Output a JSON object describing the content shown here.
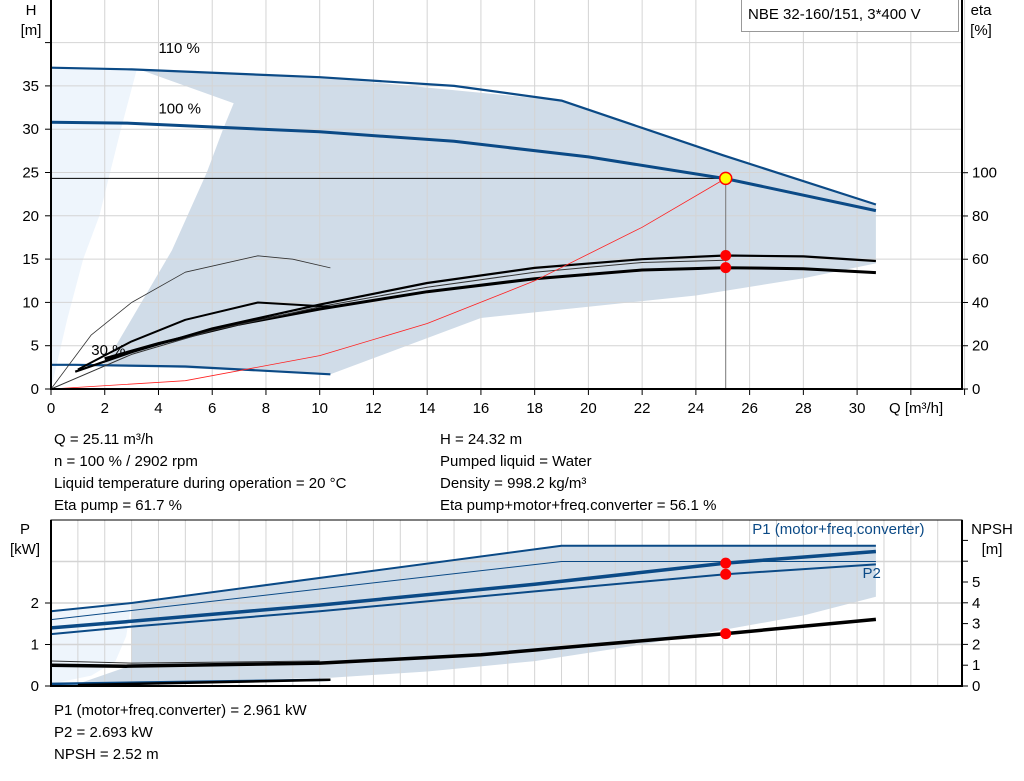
{
  "pump_title": "NBE 32-160/151, 3*400 V",
  "operating_point_info": {
    "left": [
      "Q = 25.11 m³/h",
      "n = 100 % / 2902 rpm",
      "Liquid temperature during operation = 20 °C",
      "Eta pump = 61.7 %"
    ],
    "right": [
      "H = 24.32 m",
      "Pumped liquid = Water",
      "Density = 998.2 kg/m³",
      "Eta pump+motor+freq.converter = 56.1 %"
    ]
  },
  "power_info": [
    "P1 (motor+freq.converter) = 2.961 kW",
    "P2 = 2.693 kW",
    "NPSH = 2.52 m"
  ],
  "colors": {
    "curve_blue": "#0b4a86",
    "envelope": "#d0dce8",
    "envelope_light": "#eef5fc",
    "grid": "#d4d4d4",
    "system_curve": "#ff2020",
    "marker": "#ff0000",
    "duty_point": "#ffff00"
  },
  "chart_data": [
    {
      "type": "line",
      "xlabel": "Q [m³/h]",
      "ylabel_left": [
        "H",
        "[m]"
      ],
      "ylabel_right": [
        "eta",
        "[%]"
      ],
      "xlim": [
        0,
        33.9
      ],
      "ylim_left": [
        0,
        40
      ],
      "ylim_right": [
        0,
        180
      ],
      "x_ticks": [
        "0",
        "2",
        "4",
        "6",
        "8",
        "10",
        "12",
        "14",
        "16",
        "18",
        "20",
        "22",
        "24",
        "26",
        "28",
        "30"
      ],
      "y_ticks_left": [
        "0",
        "5",
        "10",
        "15",
        "20",
        "25",
        "30",
        "35"
      ],
      "y_ticks_right": [
        "0",
        "20",
        "40",
        "60",
        "80",
        "100"
      ],
      "grid": true,
      "curve_labels": [
        {
          "text": "110 %",
          "q": 4,
          "h": 38.8
        },
        {
          "text": "100 %",
          "q": 4,
          "h": 31.8
        },
        {
          "text": "30 %",
          "q": 1.5,
          "h": 3.9
        }
      ],
      "envelope": [
        [
          3.2,
          37
        ],
        [
          10,
          36
        ],
        [
          19,
          33.3
        ],
        [
          25,
          27
        ],
        [
          30.7,
          21.3
        ],
        [
          30.7,
          14.5
        ],
        [
          28,
          12.8
        ],
        [
          24,
          10.8
        ],
        [
          20,
          9.5
        ],
        [
          16,
          8.2
        ],
        [
          10.4,
          1.7
        ],
        [
          2,
          2.8
        ],
        [
          4.5,
          16
        ],
        [
          5.8,
          25
        ],
        [
          6.4,
          30
        ],
        [
          6.8,
          33
        ],
        [
          3.2,
          37
        ]
      ],
      "envelope_light": [
        [
          0,
          37.1
        ],
        [
          3.2,
          37
        ],
        [
          2.6,
          30
        ],
        [
          2.2,
          25
        ],
        [
          1.8,
          20
        ],
        [
          1.2,
          15
        ],
        [
          0.6,
          8
        ],
        [
          0,
          0
        ]
      ],
      "series": [
        {
          "id": "qh-110",
          "axis": "H",
          "width": 2.2,
          "color": "#0b4a86",
          "points": [
            [
              0,
              37.1
            ],
            [
              3,
              36.9
            ],
            [
              10,
              36
            ],
            [
              15,
              35
            ],
            [
              19,
              33.3
            ],
            [
              25,
              27
            ],
            [
              30.7,
              21.3
            ]
          ]
        },
        {
          "id": "qh-100",
          "axis": "H",
          "width": 3,
          "color": "#0b4a86",
          "points": [
            [
              0,
              30.8
            ],
            [
              2.8,
              30.7
            ],
            [
              10,
              29.7
            ],
            [
              15,
              28.6
            ],
            [
              20,
              26.8
            ],
            [
              25.1,
              24.3
            ],
            [
              30.7,
              20.6
            ]
          ]
        },
        {
          "id": "qh-30",
          "axis": "H",
          "width": 2.2,
          "color": "#0b4a86",
          "points": [
            [
              0,
              2.8
            ],
            [
              0.9,
              2.8
            ],
            [
              5,
              2.6
            ],
            [
              10.4,
              1.7
            ]
          ]
        },
        {
          "id": "eta-pump-100",
          "axis": "eta",
          "width": 2.2,
          "color": "#000",
          "points": [
            [
              0.9,
              8
            ],
            [
              3,
              17
            ],
            [
              6,
              28
            ],
            [
              10,
              39
            ],
            [
              14,
              49
            ],
            [
              18,
              56
            ],
            [
              22,
              60
            ],
            [
              25.1,
              61.7
            ],
            [
              28,
              61.3
            ],
            [
              30.7,
              59.2
            ]
          ]
        },
        {
          "id": "eta-total-100",
          "axis": "eta",
          "width": 3,
          "color": "#000",
          "points": [
            [
              2,
              14
            ],
            [
              4,
              21
            ],
            [
              7,
              30
            ],
            [
              10,
              37
            ],
            [
              14,
              45
            ],
            [
              18,
              51
            ],
            [
              22,
              55
            ],
            [
              25.1,
              56.1
            ],
            [
              28,
              55.6
            ],
            [
              30.7,
              53.8
            ]
          ]
        },
        {
          "id": "eta-thin-1",
          "axis": "eta",
          "width": 1,
          "color": "#333",
          "points": [
            [
              0,
              0
            ],
            [
              3,
              16
            ],
            [
              6,
              27
            ],
            [
              10,
              38
            ],
            [
              14,
              47
            ],
            [
              18,
              54
            ],
            [
              22,
              58.5
            ],
            [
              25.1,
              59.5
            ]
          ]
        },
        {
          "id": "eta-30",
          "axis": "eta",
          "width": 2,
          "color": "#000",
          "points": [
            [
              1,
              9
            ],
            [
              3,
              22
            ],
            [
              5,
              32
            ],
            [
              7.7,
              40
            ],
            [
              10.4,
              38
            ]
          ]
        },
        {
          "id": "eta-thin-peak",
          "axis": "eta",
          "width": 0.8,
          "color": "#333",
          "points": [
            [
              0,
              0
            ],
            [
              1.5,
              25
            ],
            [
              3,
              40
            ],
            [
              5,
              54
            ],
            [
              7.7,
              61.6
            ],
            [
              9,
              60
            ],
            [
              10.4,
              56
            ]
          ]
        },
        {
          "id": "system-curve",
          "axis": "H",
          "width": 0.8,
          "color": "#ff2020",
          "points": [
            [
              0,
              0
            ],
            [
              5,
              0.96
            ],
            [
              10,
              3.86
            ],
            [
              14,
              7.56
            ],
            [
              18,
              12.5
            ],
            [
              22,
              18.67
            ],
            [
              25.11,
              24.32
            ]
          ]
        }
      ],
      "duty_point": {
        "q": 25.11,
        "h": 24.32
      },
      "markers": [
        {
          "q": 25.11,
          "eta": 61.7
        },
        {
          "q": 25.11,
          "eta": 56.1
        }
      ]
    },
    {
      "type": "line",
      "ylabel_left": [
        "P",
        "[kW]"
      ],
      "ylabel_right": [
        "NPSH",
        "[m]"
      ],
      "xlim": [
        0,
        33.9
      ],
      "ylim_left": [
        0,
        4
      ],
      "ylim_right": [
        0,
        8
      ],
      "y_ticks_left": [
        "0",
        "1",
        "2"
      ],
      "y_ticks_right": [
        "0",
        "1",
        "2",
        "3",
        "4",
        "5"
      ],
      "grid": true,
      "curve_labels": [
        {
          "text": "P1 (motor+freq.converter)",
          "q": 26.1,
          "p": 3.66,
          "color": "#0b4a86"
        },
        {
          "text": "P2",
          "q": 30.2,
          "p": 2.6,
          "color": "#0b4a86"
        }
      ],
      "envelope": [
        [
          3,
          2.0
        ],
        [
          19,
          3.38
        ],
        [
          30.7,
          3.38
        ],
        [
          30.7,
          2.15
        ],
        [
          28,
          1.7
        ],
        [
          22,
          1.0
        ],
        [
          18,
          0.6
        ],
        [
          14,
          0.35
        ],
        [
          10.4,
          0.2
        ],
        [
          1,
          0.05
        ],
        [
          3,
          0.5
        ],
        [
          3,
          2.0
        ]
      ],
      "envelope_light": [
        [
          0,
          1.8
        ],
        [
          3,
          2.0
        ],
        [
          2.8,
          1.2
        ],
        [
          2.4,
          0.6
        ],
        [
          1.5,
          0.25
        ],
        [
          0,
          0.05
        ]
      ],
      "series": [
        {
          "id": "p1-110",
          "axis": "P",
          "width": 2,
          "color": "#0b4a86",
          "points": [
            [
              0,
              1.8
            ],
            [
              3,
              2.0
            ],
            [
              19,
              3.38
            ],
            [
              30.7,
              3.38
            ]
          ]
        },
        {
          "id": "p1-thin",
          "axis": "P",
          "width": 1,
          "color": "#0b4a86",
          "points": [
            [
              0,
              1.6
            ],
            [
              19,
              3.0
            ],
            [
              30.7,
              3.0
            ]
          ]
        },
        {
          "id": "p1-100",
          "axis": "P",
          "width": 3.5,
          "color": "#0b4a86",
          "points": [
            [
              0,
              1.4
            ],
            [
              2.8,
              1.55
            ],
            [
              10,
              1.95
            ],
            [
              18,
              2.45
            ],
            [
              25.11,
              2.961
            ],
            [
              30.7,
              3.24
            ]
          ]
        },
        {
          "id": "p2-100",
          "axis": "P",
          "width": 2,
          "color": "#0b4a86",
          "points": [
            [
              0,
              1.25
            ],
            [
              2.8,
              1.42
            ],
            [
              10,
              1.8
            ],
            [
              18,
              2.28
            ],
            [
              25.11,
              2.693
            ],
            [
              30.7,
              2.93
            ]
          ]
        },
        {
          "id": "p-30",
          "axis": "P",
          "width": 2.5,
          "color": "#0b4a86",
          "points": [
            [
              0,
              0.05
            ],
            [
              10.4,
              0.15
            ]
          ]
        },
        {
          "id": "npsh-thin",
          "axis": "NPSH",
          "width": 1,
          "color": "#333",
          "points": [
            [
              0,
              1.2
            ],
            [
              3,
              1.1
            ],
            [
              10,
              1.2
            ]
          ]
        },
        {
          "id": "npsh-100",
          "axis": "NPSH",
          "width": 3.5,
          "color": "#000",
          "points": [
            [
              0,
              1.0
            ],
            [
              2.8,
              0.95
            ],
            [
              10,
              1.1
            ],
            [
              16,
              1.5
            ],
            [
              20,
              1.95
            ],
            [
              25.11,
              2.52
            ],
            [
              30.7,
              3.2
            ]
          ]
        },
        {
          "id": "npsh-30",
          "axis": "NPSH",
          "width": 2.5,
          "color": "#000",
          "points": [
            [
              1,
              0.05
            ],
            [
              10.4,
              0.3
            ]
          ]
        }
      ],
      "markers": [
        {
          "q": 25.11,
          "p": 2.961
        },
        {
          "q": 25.11,
          "p": 2.693
        },
        {
          "q": 25.11,
          "npsh": 2.52
        }
      ]
    }
  ]
}
